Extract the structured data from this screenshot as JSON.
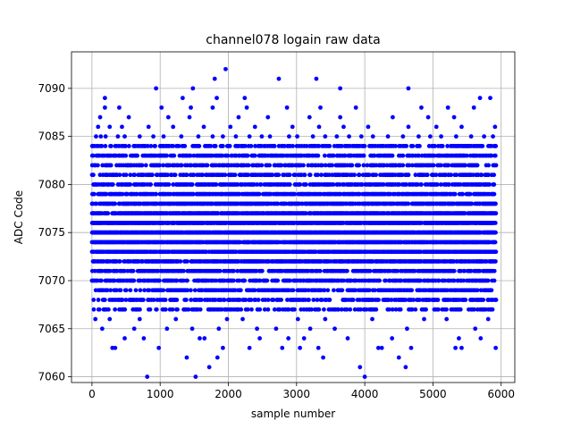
{
  "chart_data": {
    "type": "scatter",
    "title": "channel078 logain raw data",
    "xlabel": "sample number",
    "ylabel": "ADC Code",
    "xlim": [
      -300,
      6200
    ],
    "ylim": [
      7059.4,
      7093.8
    ],
    "xticks": [
      0,
      1000,
      2000,
      3000,
      4000,
      5000,
      6000
    ],
    "yticks": [
      7060,
      7065,
      7070,
      7075,
      7080,
      7085,
      7090
    ],
    "grid": true,
    "marker_color": "#0000ff",
    "series": [
      {
        "marker": "circle",
        "color": "#0000ff",
        "dense_band": {
          "x_range": [
            0,
            5919
          ],
          "y_range": [
            7068,
            7082
          ],
          "note_levels_integer": true
        },
        "points": [
          [
            810,
            7060
          ],
          [
            1520,
            7060
          ],
          [
            4000,
            7060
          ],
          [
            1390,
            7062
          ],
          [
            1720,
            7061
          ],
          [
            3930,
            7061
          ],
          [
            4600,
            7061
          ],
          [
            1840,
            7062
          ],
          [
            3390,
            7062
          ],
          [
            4500,
            7062
          ],
          [
            300,
            7063
          ],
          [
            340,
            7063
          ],
          [
            980,
            7063
          ],
          [
            1920,
            7063
          ],
          [
            2310,
            7063
          ],
          [
            2790,
            7063
          ],
          [
            3050,
            7063
          ],
          [
            3320,
            7063
          ],
          [
            4200,
            7063
          ],
          [
            4250,
            7063
          ],
          [
            4680,
            7063
          ],
          [
            5330,
            7063
          ],
          [
            5420,
            7063
          ],
          [
            5920,
            7063
          ],
          [
            480,
            7064
          ],
          [
            760,
            7064
          ],
          [
            1580,
            7064
          ],
          [
            1650,
            7064
          ],
          [
            2460,
            7064
          ],
          [
            2880,
            7064
          ],
          [
            3110,
            7064
          ],
          [
            3750,
            7064
          ],
          [
            4400,
            7064
          ],
          [
            5380,
            7064
          ],
          [
            5700,
            7064
          ],
          [
            150,
            7065
          ],
          [
            620,
            7065
          ],
          [
            1100,
            7065
          ],
          [
            1470,
            7065
          ],
          [
            1860,
            7065
          ],
          [
            2420,
            7065
          ],
          [
            2700,
            7065
          ],
          [
            3200,
            7065
          ],
          [
            3560,
            7065
          ],
          [
            4620,
            7065
          ],
          [
            5620,
            7065
          ],
          [
            50,
            7066
          ],
          [
            260,
            7066
          ],
          [
            700,
            7066
          ],
          [
            1230,
            7066
          ],
          [
            1980,
            7066
          ],
          [
            2210,
            7066
          ],
          [
            3020,
            7066
          ],
          [
            3420,
            7066
          ],
          [
            4110,
            7066
          ],
          [
            4870,
            7066
          ],
          [
            5200,
            7066
          ],
          [
            5810,
            7066
          ],
          [
            60,
            7085
          ],
          [
            130,
            7085
          ],
          [
            200,
            7085
          ],
          [
            380,
            7085
          ],
          [
            480,
            7085
          ],
          [
            700,
            7085
          ],
          [
            900,
            7085
          ],
          [
            1050,
            7085
          ],
          [
            1310,
            7085
          ],
          [
            1560,
            7085
          ],
          [
            1770,
            7085
          ],
          [
            1920,
            7085
          ],
          [
            2110,
            7085
          ],
          [
            2310,
            7085
          ],
          [
            2490,
            7085
          ],
          [
            2610,
            7085
          ],
          [
            2890,
            7085
          ],
          [
            3010,
            7085
          ],
          [
            3240,
            7085
          ],
          [
            3420,
            7085
          ],
          [
            3590,
            7085
          ],
          [
            3770,
            7085
          ],
          [
            3950,
            7085
          ],
          [
            4120,
            7085
          ],
          [
            4340,
            7085
          ],
          [
            4560,
            7085
          ],
          [
            4790,
            7085
          ],
          [
            4960,
            7085
          ],
          [
            5120,
            7085
          ],
          [
            5340,
            7085
          ],
          [
            5560,
            7085
          ],
          [
            5750,
            7085
          ],
          [
            5880,
            7085
          ],
          [
            90,
            7086
          ],
          [
            260,
            7086
          ],
          [
            440,
            7086
          ],
          [
            830,
            7086
          ],
          [
            1190,
            7086
          ],
          [
            1640,
            7086
          ],
          [
            2030,
            7086
          ],
          [
            2390,
            7086
          ],
          [
            2940,
            7086
          ],
          [
            3330,
            7086
          ],
          [
            3690,
            7086
          ],
          [
            4050,
            7086
          ],
          [
            4640,
            7086
          ],
          [
            5050,
            7086
          ],
          [
            5420,
            7086
          ],
          [
            5910,
            7086
          ],
          [
            120,
            7087
          ],
          [
            540,
            7087
          ],
          [
            1120,
            7087
          ],
          [
            1430,
            7087
          ],
          [
            2150,
            7087
          ],
          [
            2580,
            7087
          ],
          [
            3190,
            7087
          ],
          [
            3640,
            7087
          ],
          [
            4410,
            7087
          ],
          [
            4930,
            7087
          ],
          [
            5310,
            7087
          ],
          [
            190,
            7088
          ],
          [
            400,
            7088
          ],
          [
            1020,
            7088
          ],
          [
            1450,
            7088
          ],
          [
            1770,
            7088
          ],
          [
            2270,
            7088
          ],
          [
            2860,
            7088
          ],
          [
            3350,
            7088
          ],
          [
            3870,
            7088
          ],
          [
            4830,
            7088
          ],
          [
            5220,
            7088
          ],
          [
            5600,
            7088
          ],
          [
            190,
            7089
          ],
          [
            1330,
            7089
          ],
          [
            1830,
            7089
          ],
          [
            2240,
            7089
          ],
          [
            5690,
            7089
          ],
          [
            5840,
            7089
          ],
          [
            940,
            7090
          ],
          [
            1480,
            7090
          ],
          [
            3640,
            7090
          ],
          [
            4640,
            7090
          ],
          [
            1800,
            7091
          ],
          [
            2740,
            7091
          ],
          [
            3290,
            7091
          ],
          [
            1960,
            7092
          ]
        ]
      }
    ]
  }
}
